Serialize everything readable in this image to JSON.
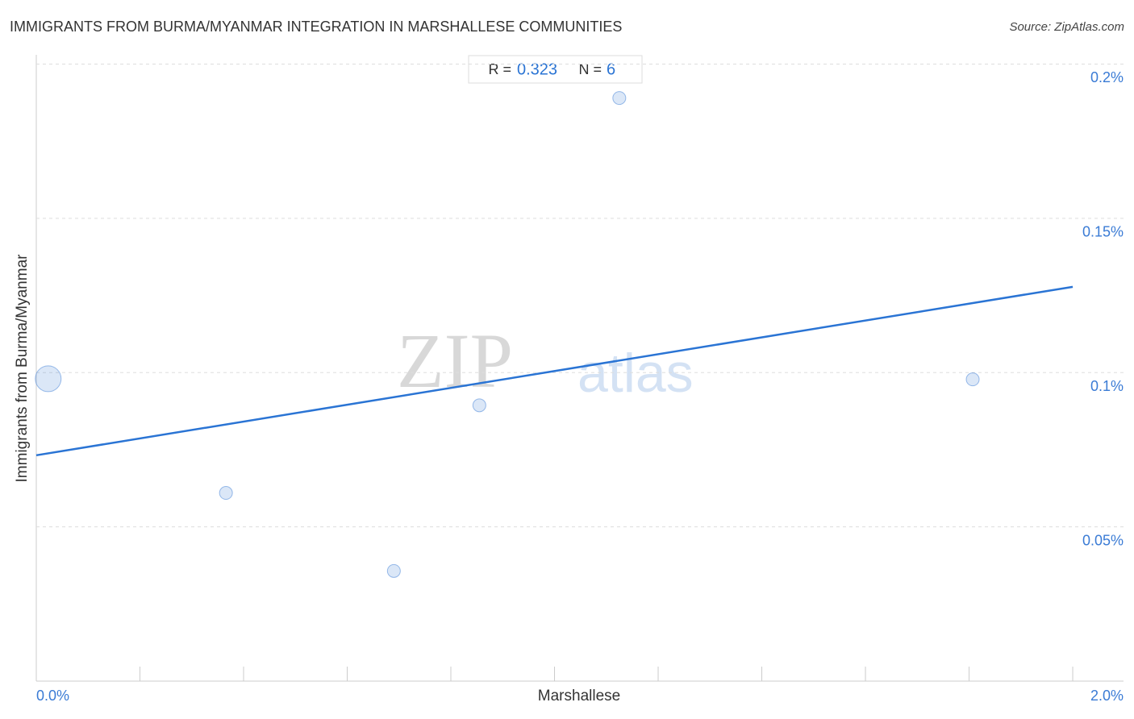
{
  "chart_data": {
    "type": "scatter",
    "title": "IMMIGRANTS FROM BURMA/MYANMAR INTEGRATION IN MARSHALLESE COMMUNITIES",
    "source": "Source: ZipAtlas.com",
    "x_label": "Marshallese",
    "y_label": "Immigrants from Burma/Myanmar",
    "watermark": [
      "ZIP",
      "atlas"
    ],
    "stats": {
      "r_label": "R =",
      "r": 0.323,
      "n_label": "N =",
      "n": 6
    },
    "x": [
      0.023,
      0.366,
      0.69,
      0.855,
      1.125,
      1.807
    ],
    "values": [
      0.098,
      0.061,
      0.0357,
      0.0894,
      0.189,
      0.0978
    ],
    "sizes": [
      4,
      1,
      1,
      1,
      1,
      1
    ],
    "color": "#3a7bd5",
    "trend": {
      "x": [
        0,
        2
      ],
      "y": [
        0.0732,
        0.1278
      ],
      "color": "#2a74d4"
    },
    "xlim": [
      0,
      2.098
    ],
    "ylim": [
      0,
      0.203
    ],
    "xticks": [
      {
        "value": 0,
        "label": "0.0%"
      },
      {
        "value": 2,
        "label": "2.0%"
      }
    ],
    "xtick_marks": [
      0.2,
      0.4,
      0.6,
      0.8,
      1.0,
      1.2,
      1.4,
      1.6,
      1.8,
      2.0
    ],
    "yticks": [
      {
        "value": 0.05,
        "label": "0.05%"
      },
      {
        "value": 0.1,
        "label": "0.1%"
      },
      {
        "value": 0.15,
        "label": "0.15%"
      },
      {
        "value": 0.2,
        "label": "0.2%"
      }
    ],
    "grid": true
  }
}
